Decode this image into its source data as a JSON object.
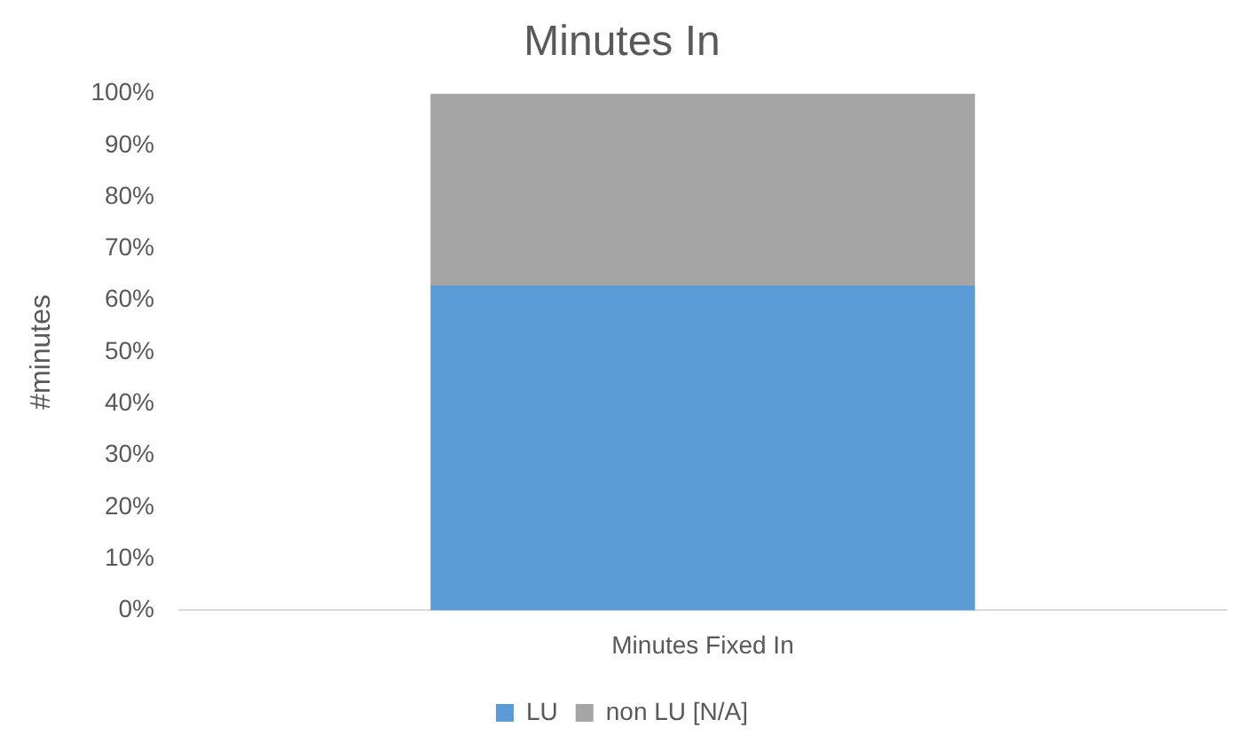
{
  "chart_data": {
    "type": "bar",
    "title": "Minutes In",
    "ylabel": "#minutes",
    "stacked": true,
    "categories": [
      "Minutes Fixed In"
    ],
    "series": [
      {
        "name": "LU",
        "color": "#5b9bd5",
        "values": [
          63
        ]
      },
      {
        "name": "non LU [N/A]",
        "color": "#a5a5a5",
        "values": [
          37
        ]
      }
    ],
    "ylim": [
      0,
      100
    ],
    "yticks": [
      {
        "value": 0,
        "label": "0%"
      },
      {
        "value": 10,
        "label": "10%"
      },
      {
        "value": 20,
        "label": "20%"
      },
      {
        "value": 30,
        "label": "30%"
      },
      {
        "value": 40,
        "label": "40%"
      },
      {
        "value": 50,
        "label": "50%"
      },
      {
        "value": 60,
        "label": "60%"
      },
      {
        "value": 70,
        "label": "70%"
      },
      {
        "value": 80,
        "label": "80%"
      },
      {
        "value": 90,
        "label": "90%"
      },
      {
        "value": 100,
        "label": "100%"
      }
    ],
    "grid": false,
    "legend": "bottom"
  }
}
